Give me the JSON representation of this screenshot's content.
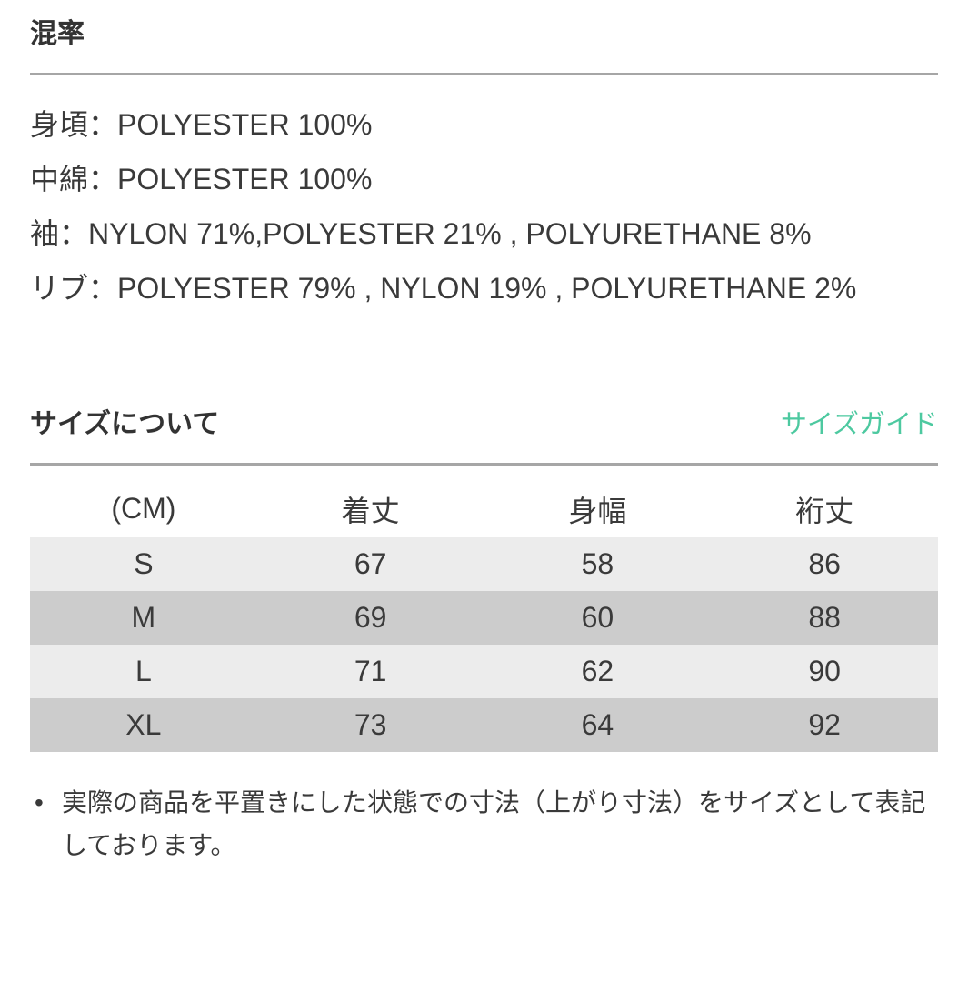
{
  "colors": {
    "background": "#ffffff",
    "text": "#3a3a3a",
    "heading": "#333333",
    "divider": "#a6a6a6",
    "link_teal": "#4dc9a0",
    "row_light": "#ececec",
    "row_dark": "#cccccc"
  },
  "composition": {
    "title": "混率",
    "lines": [
      "身頃：POLYESTER 100%",
      "中綿：POLYESTER 100%",
      "袖：NYLON 71%,POLYESTER 21% , POLYURETHANE 8%",
      "リブ：POLYESTER 79% , NYLON 19% , POLYURETHANE 2%"
    ]
  },
  "size_section": {
    "title": "サイズについて",
    "guide_link": "サイズガイド",
    "table": {
      "headers": [
        "(CM)",
        "着丈",
        "身幅",
        "裄丈"
      ],
      "rows": [
        [
          "S",
          "67",
          "58",
          "86"
        ],
        [
          "M",
          "69",
          "60",
          "88"
        ],
        [
          "L",
          "71",
          "62",
          "90"
        ],
        [
          "XL",
          "73",
          "64",
          "92"
        ]
      ]
    },
    "note": "実際の商品を平置きにした状態での寸法（上がり寸法）をサイズとして表記しております。"
  }
}
